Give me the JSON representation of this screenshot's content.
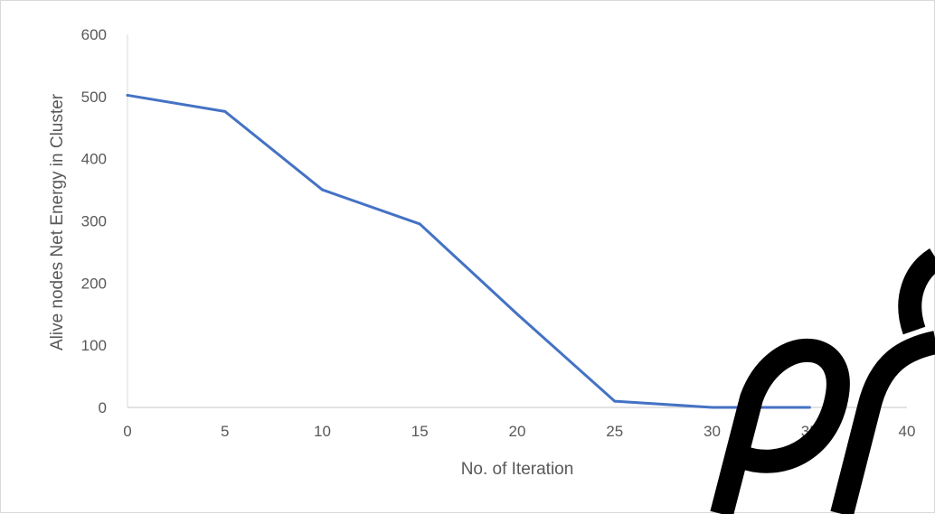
{
  "chart_data": {
    "type": "line",
    "x": [
      0,
      5,
      10,
      15,
      20,
      25,
      30,
      35
    ],
    "series": [
      {
        "values": [
          502,
          476,
          350,
          295,
          150,
          10,
          0,
          0
        ],
        "color": "#4472c4"
      }
    ],
    "xlabel": "No. of Iteration",
    "ylabel": "Alive nodes Net Energy in Cluster",
    "xlim": [
      0,
      40
    ],
    "ylim": [
      0,
      600
    ],
    "xticks": [
      "0",
      "5",
      "10",
      "15",
      "20",
      "25",
      "30",
      "35",
      "40"
    ],
    "yticks": [
      "0",
      "100",
      "200",
      "300",
      "400",
      "500",
      "600"
    ],
    "grid": false,
    "legend": "none"
  }
}
